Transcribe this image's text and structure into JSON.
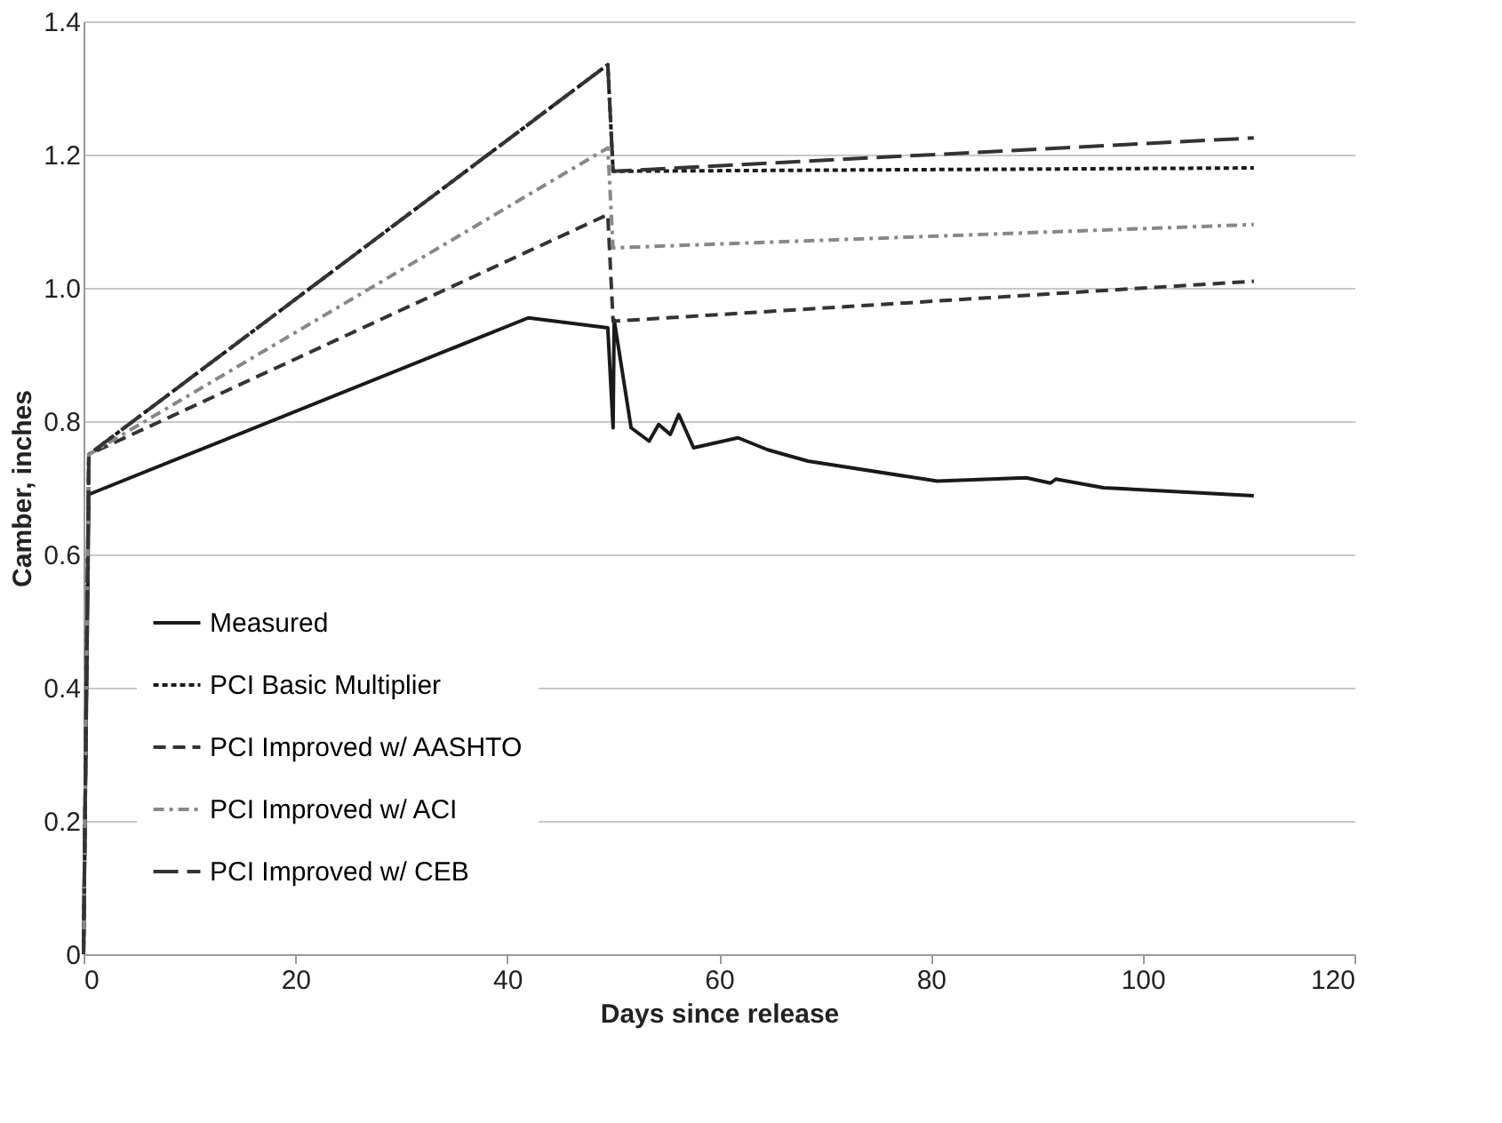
{
  "chart_data": {
    "type": "line",
    "xlabel": "Days since release",
    "ylabel": "Camber, inches",
    "xlim": [
      0,
      120
    ],
    "xticks": [
      0,
      20,
      40,
      60,
      80,
      100,
      120
    ],
    "ylim": [
      0,
      1.4
    ],
    "yticks": [
      0,
      0.2,
      0.4,
      0.6,
      0.8,
      {
        "value": 1,
        "label": "1.0"
      },
      1.2,
      1.4
    ],
    "grid": "y",
    "legend": "bottom left",
    "marker": "none",
    "series": [
      {
        "name": "Measured",
        "color": "#1a1a1a",
        "line_style": "solid",
        "x": [
          0,
          0.5,
          42,
          49.5,
          50,
          50.1,
          51.7,
          53.4,
          54.3,
          55.4,
          56.2,
          57.6,
          61.8,
          64.6,
          68.4,
          80.6,
          89,
          91.3,
          91.8,
          96.3,
          110.5
        ],
        "values": [
          0,
          0.69,
          0.955,
          0.94,
          0.79,
          0.952,
          0.79,
          0.77,
          0.795,
          0.78,
          0.81,
          0.76,
          0.775,
          0.757,
          0.74,
          0.71,
          0.715,
          0.707,
          0.713,
          0.7,
          0.688
        ]
      },
      {
        "name": "PCI Basic Multiplier",
        "color": "#1a1a1a",
        "line_style": "dotted",
        "x": [
          0,
          0.5,
          49.5,
          50,
          110.5
        ],
        "values": [
          0,
          0.75,
          1.335,
          1.175,
          1.18
        ]
      },
      {
        "name": "PCI Improved w/ AASHTO",
        "color": "#333333",
        "line_style": "dashed",
        "x": [
          0,
          0.5,
          49.5,
          50,
          110.5
        ],
        "values": [
          0,
          0.75,
          1.11,
          0.95,
          1.01
        ]
      },
      {
        "name": "PCI Improved w/ ACI",
        "color": "#888888",
        "line_style": "dashdot",
        "x": [
          0,
          0.5,
          49.5,
          50,
          110.5
        ],
        "values": [
          0,
          0.75,
          1.21,
          1.06,
          1.095
        ]
      },
      {
        "name": "PCI Improved w/ CEB",
        "color": "#333333",
        "line_style": "longdash",
        "x": [
          0,
          0.5,
          49.5,
          50,
          110.5
        ],
        "values": [
          0,
          0.75,
          1.335,
          1.175,
          1.225
        ]
      }
    ]
  }
}
